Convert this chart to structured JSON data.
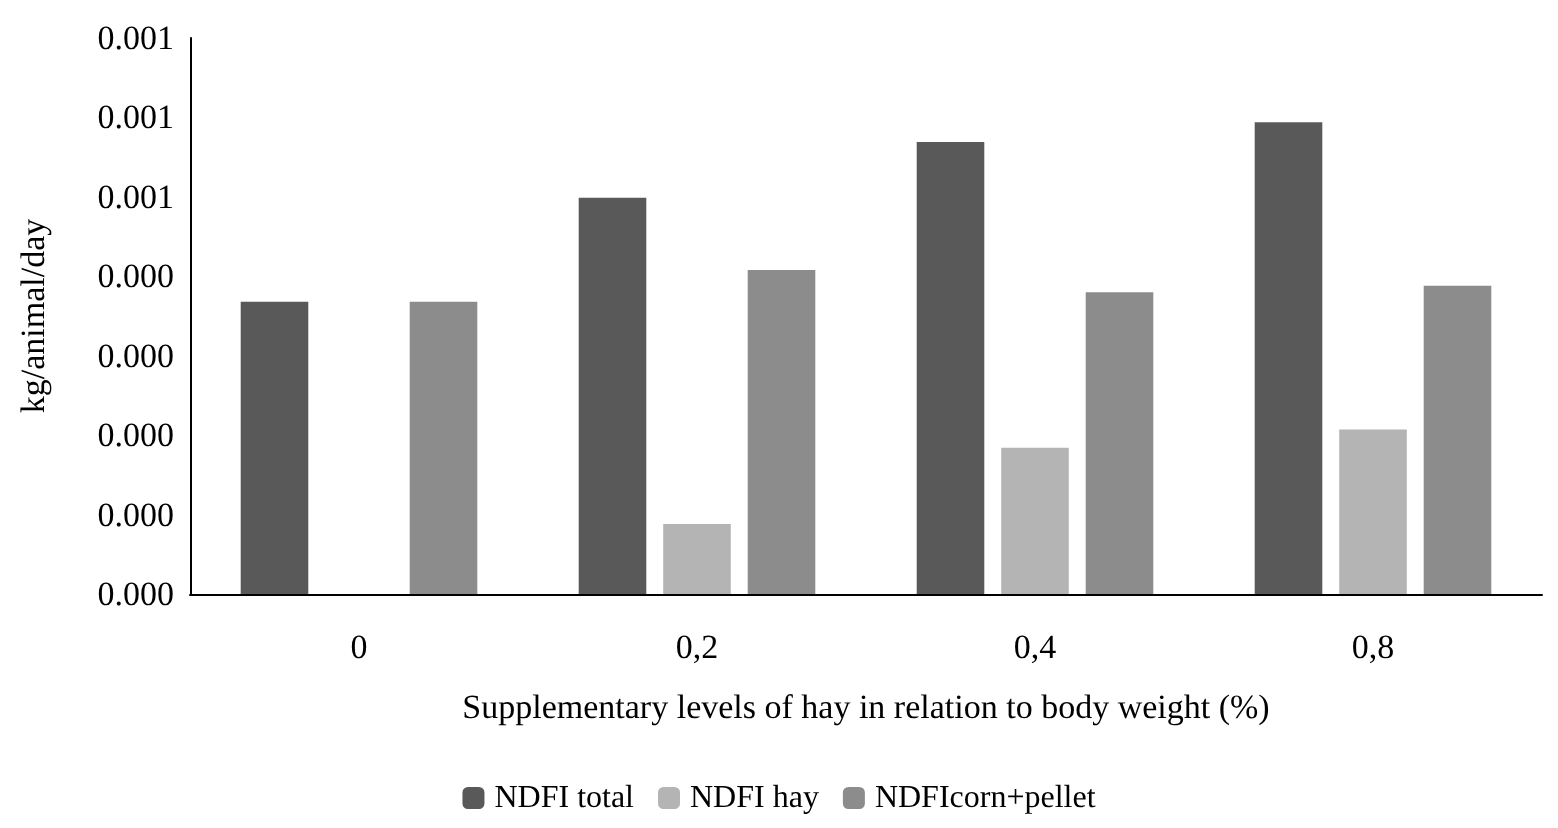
{
  "chart_data": {
    "type": "bar",
    "xlabel": "Supplementary levels of hay in relation to body weight (%)",
    "ylabel": "kg/animal/day",
    "categories": [
      "0",
      "0,2",
      "0,4",
      "0,8"
    ],
    "series": [
      {
        "name": "NDFI total",
        "color": "#595959",
        "values": [
          0.000368,
          0.000499,
          0.000569,
          0.000594
        ]
      },
      {
        "name": "NDFI hay",
        "color": "#b4b4b4",
        "values": [
          null,
          8.8e-05,
          0.000184,
          0.000207
        ]
      },
      {
        "name": "NDFIcorn+pellet",
        "color": "#8c8c8c",
        "values": [
          0.000368,
          0.000408,
          0.00038,
          0.000388
        ]
      }
    ],
    "ylim": [
      0,
      0.0007
    ],
    "yticks": [
      {
        "value": 0,
        "label": "0.000"
      },
      {
        "value": 0.0001,
        "label": "0.000"
      },
      {
        "value": 0.0002,
        "label": "0.000"
      },
      {
        "value": 0.0003,
        "label": "0.000"
      },
      {
        "value": 0.0004,
        "label": "0.000"
      },
      {
        "value": 0.0005,
        "label": "0.001"
      },
      {
        "value": 0.0006,
        "label": "0.001"
      },
      {
        "value": 0.0007,
        "label": "0.001"
      }
    ],
    "grid": false,
    "legend": "bottom"
  }
}
